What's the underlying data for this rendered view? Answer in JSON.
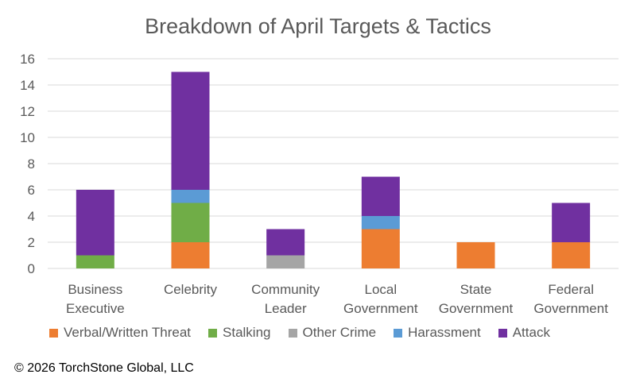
{
  "chart_data": {
    "type": "bar",
    "stacked": true,
    "title": "Breakdown of April Targets & Tactics",
    "categories": [
      [
        "Business",
        "Executive"
      ],
      [
        "Celebrity"
      ],
      [
        "Community",
        "Leader"
      ],
      [
        "Local",
        "Government"
      ],
      [
        "State",
        "Government"
      ],
      [
        "Federal",
        "Government"
      ]
    ],
    "series": [
      {
        "name": "Verbal/Written Threat",
        "color": "#ED7D31",
        "values": [
          0,
          2,
          0,
          3,
          2,
          2
        ]
      },
      {
        "name": "Stalking",
        "color": "#70AD47",
        "values": [
          1,
          3,
          0,
          0,
          0,
          0
        ]
      },
      {
        "name": "Other Crime",
        "color": "#A5A5A5",
        "values": [
          0,
          0,
          1,
          0,
          0,
          0
        ]
      },
      {
        "name": "Harassment",
        "color": "#5B9BD5",
        "values": [
          0,
          1,
          0,
          1,
          0,
          0
        ]
      },
      {
        "name": "Attack",
        "color": "#7030A0",
        "values": [
          5,
          9,
          2,
          3,
          0,
          3
        ]
      }
    ],
    "ylim": [
      0,
      16
    ],
    "yticks": [
      0,
      2,
      4,
      6,
      8,
      10,
      12,
      14,
      16
    ],
    "grid": true,
    "legend": "bottom"
  },
  "footer": {
    "copyright": "© 2026 TorchStone Global, LLC"
  }
}
